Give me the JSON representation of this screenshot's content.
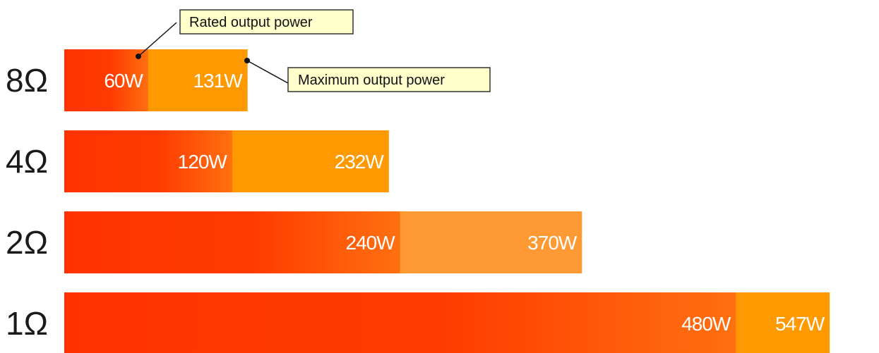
{
  "chart_data": {
    "type": "bar",
    "orientation": "horizontal",
    "categories": [
      "8Ω",
      "4Ω",
      "2Ω",
      "1Ω"
    ],
    "series": [
      {
        "name": "Rated output power",
        "values": [
          60,
          120,
          240,
          480
        ],
        "labels": [
          "60W",
          "120W",
          "240W",
          "480W"
        ]
      },
      {
        "name": "Maximum output power",
        "values": [
          131,
          232,
          370,
          547
        ],
        "labels": [
          "131W",
          "232W",
          "370W",
          "547W"
        ]
      }
    ],
    "unit": "W",
    "title": "",
    "xlabel": "",
    "ylabel": "",
    "grid": false,
    "colors": {
      "rated_start": "#ff3300",
      "rated_end": "#ff6a10",
      "maximum": "#ff9900",
      "maximum_2ohm": "#ff9933"
    }
  }
}
